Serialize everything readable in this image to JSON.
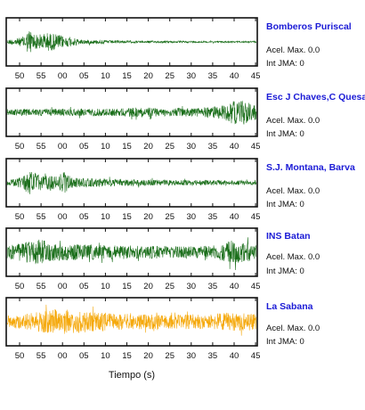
{
  "chart_data": {
    "type": "line",
    "xlabel": "Tiempo (s)",
    "tick_labels": [
      "50",
      "55",
      "00",
      "05",
      "10",
      "15",
      "20",
      "25",
      "30",
      "35",
      "40",
      "45"
    ],
    "panels": [
      {
        "name": "Bomberos Puriscal",
        "acel_label": "Acel. Max. 0.0",
        "int_label": "Int JMA: 0",
        "color": "#1a6e1a",
        "profile": [
          [
            0,
            0.18
          ],
          [
            0.06,
            0.35
          ],
          [
            0.09,
            1.0
          ],
          [
            0.12,
            0.55
          ],
          [
            0.16,
            0.75
          ],
          [
            0.2,
            0.6
          ],
          [
            0.24,
            0.38
          ],
          [
            0.3,
            0.18
          ],
          [
            0.45,
            0.1
          ],
          [
            0.7,
            0.07
          ],
          [
            1,
            0.06
          ]
        ]
      },
      {
        "name": "Esc J Chaves,C Quesada",
        "acel_label": "Acel. Max. 0.0",
        "int_label": "Int JMA: 0",
        "color": "#1a6e1a",
        "profile": [
          [
            0,
            0.25
          ],
          [
            0.2,
            0.28
          ],
          [
            0.45,
            0.3
          ],
          [
            0.55,
            0.4
          ],
          [
            0.62,
            0.3
          ],
          [
            0.75,
            0.35
          ],
          [
            0.85,
            0.5
          ],
          [
            0.9,
            0.85
          ],
          [
            0.95,
            1.0
          ],
          [
            1,
            0.55
          ]
        ]
      },
      {
        "name": "S.J. Montana, Barva",
        "acel_label": "Acel. Max. 0.0",
        "int_label": "Int JMA: 0",
        "color": "#1a6e1a",
        "profile": [
          [
            0,
            0.2
          ],
          [
            0.06,
            0.45
          ],
          [
            0.09,
            1.0
          ],
          [
            0.14,
            0.55
          ],
          [
            0.2,
            0.5
          ],
          [
            0.23,
            0.85
          ],
          [
            0.26,
            0.4
          ],
          [
            0.4,
            0.3
          ],
          [
            0.6,
            0.22
          ],
          [
            0.8,
            0.2
          ],
          [
            1,
            0.15
          ]
        ]
      },
      {
        "name": "INS Batan",
        "acel_label": "Acel. Max. 0.0",
        "int_label": "Int JMA: 0",
        "color": "#1a6e1a",
        "profile": [
          [
            0,
            0.5
          ],
          [
            0.08,
            0.8
          ],
          [
            0.13,
            1.0
          ],
          [
            0.2,
            0.7
          ],
          [
            0.3,
            0.6
          ],
          [
            0.45,
            0.55
          ],
          [
            0.6,
            0.5
          ],
          [
            0.75,
            0.45
          ],
          [
            0.85,
            0.6
          ],
          [
            0.9,
            0.95
          ],
          [
            1,
            0.6
          ]
        ]
      },
      {
        "name": "La Sabana",
        "acel_label": "Acel. Max. 0.0",
        "int_label": "Int JMA: 0",
        "color": "#f5a80a",
        "profile": [
          [
            0,
            0.45
          ],
          [
            0.1,
            0.7
          ],
          [
            0.2,
            1.0
          ],
          [
            0.27,
            0.9
          ],
          [
            0.35,
            0.75
          ],
          [
            0.5,
            0.6
          ],
          [
            0.65,
            0.55
          ],
          [
            0.8,
            0.55
          ],
          [
            0.9,
            0.75
          ],
          [
            1,
            0.6
          ]
        ]
      }
    ]
  }
}
